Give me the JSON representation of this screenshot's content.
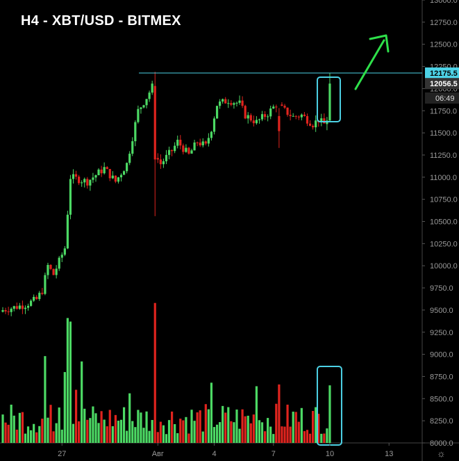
{
  "chart_data": {
    "type": "candlestick",
    "title": "H4 - XBT/USD - BITMEX",
    "ylim": [
      8000,
      13000
    ],
    "y_ticks": [
      8000,
      8250,
      8500,
      8750,
      9000,
      9250,
      9500,
      9750,
      10000,
      10250,
      10500,
      10750,
      11000,
      11250,
      11500,
      11750,
      12000,
      12250,
      12500,
      12750,
      13000
    ],
    "y_tick_labels": [
      "8000.0",
      "8250.0",
      "8500.0",
      "8750.0",
      "9000.0",
      "9250.0",
      "9500.0",
      "9750.0",
      "10000.0",
      "10250.0",
      "10500.0",
      "10750.0",
      "11000.0",
      "11250.0",
      "11500.0",
      "11750.0",
      "12000.0",
      "12250.0",
      "12500.0",
      "12750.0",
      "13000.0"
    ],
    "x_tick_labels": [
      {
        "label": "27",
        "bar": 21
      },
      {
        "label": "Авг",
        "bar": 55
      },
      {
        "label": "4",
        "bar": 75
      },
      {
        "label": "7",
        "bar": 96
      },
      {
        "label": "10",
        "bar": 116
      },
      {
        "label": "13",
        "bar": 137
      }
    ],
    "resistance_level": 12175.5,
    "resistance_label": "12175.5",
    "last_price": 12056.5,
    "last_price_label": "12056.5",
    "countdown": "06:49",
    "colors": {
      "up": "#4cd964",
      "down": "#e0241e",
      "level": "#4dd2e6",
      "arrow": "#2ee04a",
      "highlight": "#4dd2e6"
    },
    "candles": [],
    "volumes": [],
    "highlight_bar": 116
  },
  "ui": {
    "settings_icon": "gear-icon"
  }
}
